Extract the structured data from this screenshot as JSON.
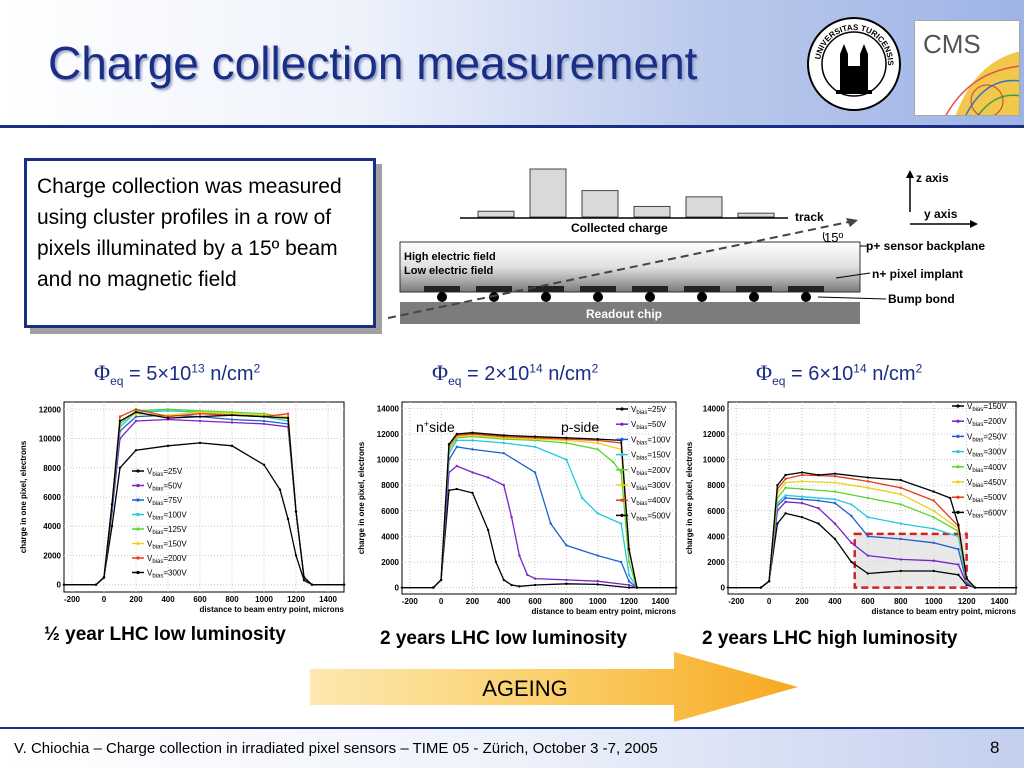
{
  "slide": {
    "title": "Charge collection measurement",
    "description": "Charge collection was measured using cluster profiles in a row of pixels illuminated by a 15º beam and no magnetic field",
    "footer": "V. Chiochia – Charge collection in irradiated pixel sensors – TIME 05 - Zürich, October 3 -7, 2005",
    "page_number": "8",
    "ageing_label": "AGEING"
  },
  "logos": {
    "seal_text": "UNIVERSITAS TURICENSIS MDCCCXXXIII",
    "cms_text": "CMS"
  },
  "diagram": {
    "collected_charge": "Collected charge",
    "track": "track",
    "angle": "15º",
    "z_axis": "z axis",
    "y_axis": "y axis",
    "high_field": "High electric field",
    "low_field": "Low electric field",
    "backplane": "p+ sensor backplane",
    "implant": "n+ pixel implant",
    "bump": "Bump bond",
    "readout": "Readout chip",
    "bar_heights": [
      0.12,
      1.0,
      0.55,
      0.22,
      0.42,
      0.08
    ]
  },
  "panels": [
    {
      "flux_symbol": "Φ",
      "flux_sub": "eq",
      "flux_text": " = 5×10",
      "flux_exp": "13",
      "flux_unit": " n/cm",
      "flux_unit_exp": "2",
      "caption": "½ year LHC low luminosity",
      "ylabel": "charge in one pixel, electrons",
      "xlabel": "distance to beam entry point, microns"
    },
    {
      "flux_symbol": "Φ",
      "flux_sub": "eq",
      "flux_text": " = 2×10",
      "flux_exp": "14",
      "flux_unit": " n/cm",
      "flux_unit_exp": "2",
      "caption": "2 years LHC low luminosity",
      "ylabel": "charge in one pixel, electrons",
      "xlabel": "distance to beam entry point, microns",
      "annotations": [
        "n+side",
        "p-side"
      ]
    },
    {
      "flux_symbol": "Φ",
      "flux_sub": "eq",
      "flux_text": " = 6×10",
      "flux_exp": "14",
      "flux_unit": " n/cm",
      "flux_unit_exp": "2",
      "caption": "2 years LHC high luminosity",
      "ylabel": "charge in one pixel, electrons",
      "xlabel": "distance to beam entry point, microns"
    }
  ],
  "chart_data": [
    {
      "type": "line",
      "xlabel": "distance to beam entry point, microns",
      "ylabel": "charge in one pixel, electrons",
      "xlim": [
        -250,
        1500
      ],
      "ylim": [
        -500,
        12500
      ],
      "xticks": [
        -200,
        0,
        200,
        400,
        600,
        800,
        1000,
        1200,
        1400
      ],
      "yticks": [
        0,
        2000,
        4000,
        6000,
        8000,
        10000,
        12000
      ],
      "legend_position": "bottom-left-center",
      "series": [
        {
          "name": "V_bias=25V",
          "color": "#000000",
          "x": [
            -250,
            -50,
            0,
            50,
            100,
            200,
            400,
            600,
            800,
            1000,
            1100,
            1150,
            1200,
            1250,
            1300,
            1500
          ],
          "y": [
            0,
            0,
            500,
            4000,
            8000,
            9200,
            9500,
            9700,
            9500,
            8200,
            6500,
            4500,
            2000,
            300,
            0,
            0
          ]
        },
        {
          "name": "V_bias=50V",
          "color": "#7a22c8",
          "x": [
            -250,
            -50,
            0,
            50,
            100,
            200,
            400,
            600,
            800,
            1000,
            1150,
            1200,
            1250,
            1300,
            1500
          ],
          "y": [
            0,
            0,
            500,
            5000,
            10000,
            11200,
            11300,
            11200,
            11100,
            11000,
            10800,
            5000,
            500,
            0,
            0
          ]
        },
        {
          "name": "V_bias=75V",
          "color": "#1f5fd0",
          "x": [
            -250,
            -50,
            0,
            50,
            100,
            200,
            400,
            600,
            800,
            1000,
            1150,
            1200,
            1250,
            1300,
            1500
          ],
          "y": [
            0,
            0,
            500,
            5000,
            10500,
            11500,
            11600,
            11500,
            11300,
            11200,
            11000,
            5000,
            500,
            0,
            0
          ]
        },
        {
          "name": "V_bias=100V",
          "color": "#22c8e0",
          "x": [
            -250,
            -50,
            0,
            50,
            100,
            200,
            400,
            600,
            800,
            1000,
            1150,
            1200,
            1250,
            1300,
            1500
          ],
          "y": [
            0,
            0,
            500,
            5500,
            10800,
            11800,
            11900,
            11800,
            11600,
            11500,
            11200,
            5000,
            500,
            0,
            0
          ]
        },
        {
          "name": "V_bias=125V",
          "color": "#59d62a",
          "x": [
            -250,
            -50,
            0,
            50,
            100,
            200,
            400,
            600,
            800,
            1000,
            1150,
            1200,
            1250,
            1300,
            1500
          ],
          "y": [
            0,
            0,
            500,
            5500,
            11000,
            11900,
            12000,
            11900,
            11800,
            11700,
            11400,
            5000,
            500,
            0,
            0
          ]
        },
        {
          "name": "V_bias=150V",
          "color": "#e8d21a",
          "x": [
            -250,
            -50,
            0,
            50,
            100,
            200,
            400,
            600,
            800,
            1000,
            1150,
            1200,
            1250,
            1300,
            1500
          ],
          "y": [
            0,
            0,
            500,
            5500,
            11200,
            11700,
            11600,
            11800,
            11700,
            11600,
            11500,
            5000,
            500,
            0,
            0
          ]
        },
        {
          "name": "V_bias=200V",
          "color": "#e63b1a",
          "x": [
            -250,
            -50,
            0,
            50,
            100,
            200,
            400,
            600,
            800,
            1000,
            1150,
            1200,
            1250,
            1300,
            1500
          ],
          "y": [
            0,
            0,
            500,
            5500,
            11500,
            12000,
            11500,
            11700,
            11600,
            11500,
            11700,
            5000,
            500,
            0,
            0
          ]
        },
        {
          "name": "V_bias=300V",
          "color": "#000000",
          "x": [
            -250,
            -50,
            0,
            50,
            100,
            200,
            400,
            600,
            800,
            1000,
            1150,
            1200,
            1250,
            1300,
            1500
          ],
          "y": [
            0,
            0,
            500,
            5500,
            11200,
            11800,
            11400,
            11500,
            11600,
            11500,
            11400,
            5000,
            500,
            0,
            0
          ]
        }
      ]
    },
    {
      "type": "line",
      "xlabel": "distance to beam entry point, microns",
      "ylabel": "charge in one pixel, electrons",
      "xlim": [
        -250,
        1500
      ],
      "ylim": [
        -500,
        14500
      ],
      "xticks": [
        -200,
        0,
        200,
        400,
        600,
        800,
        1000,
        1200,
        1400
      ],
      "yticks": [
        0,
        2000,
        4000,
        6000,
        8000,
        10000,
        12000,
        14000
      ],
      "legend_position": "top-right",
      "series": [
        {
          "name": "V_bias=25V",
          "color": "#000000",
          "x": [
            -250,
            -50,
            0,
            50,
            100,
            200,
            300,
            350,
            400,
            450,
            500,
            600,
            800,
            1000,
            1200,
            1250,
            1500
          ],
          "y": [
            0,
            0,
            600,
            7600,
            7700,
            7400,
            4500,
            2000,
            600,
            200,
            100,
            200,
            300,
            250,
            0,
            0,
            0
          ]
        },
        {
          "name": "V_bias=50V",
          "color": "#7a22c8",
          "x": [
            -250,
            -50,
            0,
            50,
            100,
            200,
            300,
            400,
            450,
            500,
            550,
            600,
            800,
            1000,
            1200,
            1250,
            1500
          ],
          "y": [
            0,
            0,
            600,
            9000,
            9500,
            9000,
            8600,
            8000,
            5500,
            2500,
            1000,
            700,
            600,
            500,
            200,
            0,
            0
          ]
        },
        {
          "name": "V_bias=100V",
          "color": "#1f5fd0",
          "x": [
            -250,
            -50,
            0,
            50,
            100,
            200,
            400,
            600,
            700,
            800,
            1000,
            1150,
            1200,
            1250,
            1500
          ],
          "y": [
            0,
            0,
            600,
            10000,
            11000,
            10800,
            10500,
            9000,
            5000,
            3300,
            2500,
            2000,
            500,
            0,
            0
          ]
        },
        {
          "name": "V_bias=150V",
          "color": "#22c8e0",
          "x": [
            -250,
            -50,
            0,
            50,
            100,
            200,
            400,
            600,
            800,
            900,
            1000,
            1150,
            1200,
            1250,
            1500
          ],
          "y": [
            0,
            0,
            600,
            10500,
            11500,
            11500,
            11300,
            11000,
            10000,
            7000,
            5800,
            5000,
            1000,
            0,
            0
          ]
        },
        {
          "name": "V_bias=200V",
          "color": "#59d62a",
          "x": [
            -250,
            -50,
            0,
            50,
            100,
            200,
            400,
            600,
            800,
            1000,
            1100,
            1150,
            1200,
            1250,
            1500
          ],
          "y": [
            0,
            0,
            600,
            10800,
            11700,
            11800,
            11600,
            11500,
            11300,
            10800,
            9800,
            9000,
            2000,
            0,
            0
          ]
        },
        {
          "name": "V_bias=300V",
          "color": "#e8d21a",
          "x": [
            -250,
            -50,
            0,
            50,
            100,
            200,
            400,
            600,
            800,
            1000,
            1150,
            1200,
            1250,
            1500
          ],
          "y": [
            0,
            0,
            600,
            11000,
            11800,
            11900,
            11700,
            11600,
            11500,
            11300,
            10800,
            3000,
            0,
            0
          ]
        },
        {
          "name": "V_bias=400V",
          "color": "#e63b1a",
          "x": [
            -250,
            -50,
            0,
            50,
            100,
            200,
            400,
            600,
            800,
            1000,
            1150,
            1200,
            1250,
            1500
          ],
          "y": [
            0,
            0,
            600,
            11100,
            11900,
            12000,
            11800,
            11700,
            11600,
            11500,
            11300,
            3000,
            0,
            0
          ]
        },
        {
          "name": "V_bias=500V",
          "color": "#000000",
          "x": [
            -250,
            -50,
            0,
            50,
            100,
            200,
            400,
            600,
            800,
            1000,
            1150,
            1200,
            1250,
            1500
          ],
          "y": [
            0,
            0,
            600,
            11200,
            12000,
            12100,
            11900,
            11800,
            11700,
            11600,
            11500,
            3000,
            0,
            0
          ]
        }
      ]
    },
    {
      "type": "line",
      "xlabel": "distance to beam entry point, microns",
      "ylabel": "charge in one pixel, electrons",
      "xlim": [
        -250,
        1500
      ],
      "ylim": [
        -500,
        14500
      ],
      "xticks": [
        -200,
        0,
        200,
        400,
        600,
        800,
        1000,
        1200,
        1400
      ],
      "yticks": [
        0,
        2000,
        4000,
        6000,
        8000,
        10000,
        12000,
        14000
      ],
      "legend_position": "top-right",
      "series": [
        {
          "name": "V_bias=150V",
          "color": "#000000",
          "x": [
            -250,
            -50,
            0,
            50,
            100,
            200,
            300,
            400,
            500,
            600,
            800,
            1000,
            1150,
            1200,
            1250,
            1500
          ],
          "y": [
            0,
            0,
            500,
            5000,
            5800,
            5500,
            5000,
            3800,
            2000,
            1100,
            1300,
            1300,
            1000,
            200,
            0,
            0
          ]
        },
        {
          "name": "V_bias=200V",
          "color": "#7a22c8",
          "x": [
            -250,
            -50,
            0,
            50,
            100,
            200,
            300,
            400,
            500,
            600,
            800,
            1000,
            1150,
            1200,
            1250,
            1500
          ],
          "y": [
            0,
            0,
            500,
            6000,
            6700,
            6600,
            6200,
            5000,
            3500,
            2500,
            2200,
            2100,
            1800,
            300,
            0,
            0
          ]
        },
        {
          "name": "V_bias=250V",
          "color": "#1f5fd0",
          "x": [
            -250,
            -50,
            0,
            50,
            100,
            200,
            300,
            400,
            500,
            600,
            800,
            1000,
            1150,
            1200,
            1250,
            1500
          ],
          "y": [
            0,
            0,
            500,
            6400,
            7000,
            6900,
            6800,
            6600,
            5600,
            4000,
            3800,
            3500,
            3000,
            400,
            0,
            0
          ]
        },
        {
          "name": "V_bias=300V",
          "color": "#22c8e0",
          "x": [
            -250,
            -50,
            0,
            50,
            100,
            200,
            400,
            500,
            600,
            800,
            1000,
            1150,
            1200,
            1250,
            1500
          ],
          "y": [
            0,
            0,
            500,
            6600,
            7200,
            7100,
            6900,
            6500,
            5500,
            5000,
            4600,
            4000,
            500,
            0,
            0
          ]
        },
        {
          "name": "V_bias=400V",
          "color": "#59d62a",
          "x": [
            -250,
            -50,
            0,
            50,
            100,
            200,
            400,
            600,
            800,
            1000,
            1150,
            1200,
            1250,
            1500
          ],
          "y": [
            0,
            0,
            500,
            7000,
            7800,
            7700,
            7500,
            7000,
            6500,
            5500,
            4400,
            600,
            0,
            0
          ]
        },
        {
          "name": "V_bias=450V",
          "color": "#e8d21a",
          "x": [
            -250,
            -50,
            0,
            50,
            100,
            200,
            400,
            600,
            800,
            1000,
            1150,
            1200,
            1250,
            1500
          ],
          "y": [
            0,
            0,
            500,
            7400,
            8200,
            8300,
            8200,
            7800,
            7300,
            6000,
            4600,
            600,
            0,
            0
          ]
        },
        {
          "name": "V_bias=500V",
          "color": "#e63b1a",
          "x": [
            -250,
            -50,
            0,
            50,
            100,
            200,
            400,
            600,
            800,
            1000,
            1150,
            1200,
            1250,
            1500
          ],
          "y": [
            0,
            0,
            500,
            7700,
            8500,
            8800,
            8700,
            8300,
            7800,
            6800,
            4800,
            700,
            0,
            0
          ]
        },
        {
          "name": "V_bias=600V",
          "color": "#000000",
          "x": [
            -250,
            -50,
            0,
            50,
            100,
            200,
            300,
            400,
            600,
            800,
            1000,
            1100,
            1150,
            1200,
            1250,
            1500
          ],
          "y": [
            0,
            0,
            500,
            8000,
            8800,
            9000,
            8800,
            8900,
            8600,
            8400,
            7500,
            7000,
            4900,
            700,
            0,
            0
          ]
        }
      ],
      "highlight_box": {
        "x": [
          520,
          1200
        ],
        "y": [
          0,
          4200
        ]
      }
    }
  ]
}
